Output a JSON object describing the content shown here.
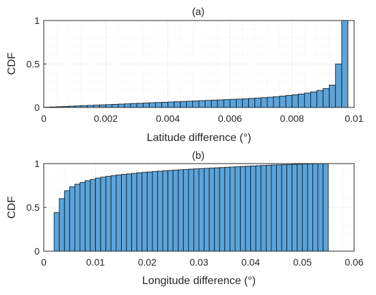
{
  "chart_data": [
    {
      "type": "bar",
      "panel_label": "(a)",
      "title": "(a)",
      "xlabel": "Latitude difference (°)",
      "ylabel": "CDF",
      "xlim": [
        0,
        0.01
      ],
      "ylim": [
        0,
        1
      ],
      "grid": "on (major and minor, dotted)",
      "xticks": [
        "0",
        "0.002",
        "0.004",
        "0.006",
        "0.008",
        "0.01"
      ],
      "yticks": [
        "0",
        "0.5",
        "1"
      ],
      "bin_width": 0.0002,
      "bin_starts": [
        0.0,
        0.0002,
        0.0004,
        0.0006,
        0.0008,
        0.001,
        0.0012,
        0.0014,
        0.0016,
        0.0018,
        0.002,
        0.0022,
        0.0024,
        0.0026,
        0.0028,
        0.003,
        0.0032,
        0.0034,
        0.0036,
        0.0038,
        0.004,
        0.0042,
        0.0044,
        0.0046,
        0.0048,
        0.005,
        0.0052,
        0.0054,
        0.0056,
        0.0058,
        0.006,
        0.0062,
        0.0064,
        0.0066,
        0.0068,
        0.007,
        0.0072,
        0.0074,
        0.0076,
        0.0078,
        0.008,
        0.0082,
        0.0084,
        0.0086,
        0.0088,
        0.009,
        0.0092,
        0.0094,
        0.0096
      ],
      "values": [
        0.003,
        0.006,
        0.009,
        0.012,
        0.015,
        0.018,
        0.021,
        0.024,
        0.027,
        0.03,
        0.033,
        0.036,
        0.039,
        0.042,
        0.045,
        0.048,
        0.051,
        0.054,
        0.057,
        0.06,
        0.063,
        0.066,
        0.069,
        0.072,
        0.075,
        0.078,
        0.081,
        0.084,
        0.087,
        0.09,
        0.093,
        0.096,
        0.1,
        0.104,
        0.108,
        0.113,
        0.118,
        0.124,
        0.131,
        0.138,
        0.146,
        0.155,
        0.166,
        0.179,
        0.196,
        0.218,
        0.257,
        0.5,
        1.0
      ]
    },
    {
      "type": "bar",
      "panel_label": "(b)",
      "title": "(b)",
      "xlabel": "Longitude difference (°)",
      "ylabel": "CDF",
      "xlim": [
        0,
        0.06
      ],
      "ylim": [
        0,
        1
      ],
      "grid": "on (major and minor, dotted)",
      "xticks": [
        "0",
        "0.01",
        "0.02",
        "0.03",
        "0.04",
        "0.05",
        "0.06"
      ],
      "yticks": [
        "0",
        "0.5",
        "1"
      ],
      "bin_width": 0.001,
      "bin_starts": [
        0.002,
        0.003,
        0.004,
        0.005,
        0.006,
        0.007,
        0.008,
        0.009,
        0.01,
        0.011,
        0.012,
        0.013,
        0.014,
        0.015,
        0.016,
        0.017,
        0.018,
        0.019,
        0.02,
        0.021,
        0.022,
        0.023,
        0.024,
        0.025,
        0.026,
        0.027,
        0.028,
        0.029,
        0.03,
        0.031,
        0.032,
        0.033,
        0.034,
        0.035,
        0.036,
        0.037,
        0.038,
        0.039,
        0.04,
        0.041,
        0.042,
        0.043,
        0.044,
        0.045,
        0.046,
        0.047,
        0.048,
        0.049,
        0.05,
        0.051,
        0.052,
        0.053,
        0.054
      ],
      "values": [
        0.44,
        0.6,
        0.69,
        0.735,
        0.765,
        0.785,
        0.805,
        0.82,
        0.835,
        0.845,
        0.855,
        0.862,
        0.87,
        0.877,
        0.883,
        0.889,
        0.895,
        0.9,
        0.905,
        0.91,
        0.914,
        0.918,
        0.922,
        0.926,
        0.93,
        0.933,
        0.937,
        0.94,
        0.943,
        0.946,
        0.949,
        0.952,
        0.955,
        0.958,
        0.961,
        0.964,
        0.967,
        0.97,
        0.973,
        0.976,
        0.979,
        0.982,
        0.984,
        0.986,
        0.988,
        0.99,
        0.992,
        0.994,
        0.996,
        0.997,
        0.998,
        0.999,
        1.0
      ]
    }
  ]
}
